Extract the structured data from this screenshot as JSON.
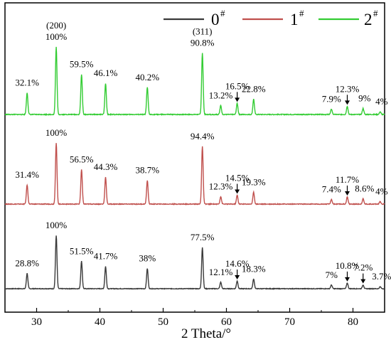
{
  "chart_data": {
    "type": "line",
    "xlabel": "2 Theta/°",
    "ylabel": "",
    "xlim": [
      25,
      85
    ],
    "x_ticks": [
      30,
      40,
      50,
      60,
      70,
      80
    ],
    "grid": false,
    "legend_position": "top-right",
    "series": [
      {
        "name": "0",
        "name_sup": "#",
        "color": "#3a3a3a",
        "peaks": [
          {
            "x": 28.5,
            "label": "28.8%",
            "rel": 0.288
          },
          {
            "x": 33.1,
            "label": "100%",
            "rel": 1.0
          },
          {
            "x": 37.1,
            "label": "51.5%",
            "rel": 0.515
          },
          {
            "x": 40.9,
            "label": "41.7%",
            "rel": 0.417
          },
          {
            "x": 47.5,
            "label": "38%",
            "rel": 0.38
          },
          {
            "x": 56.2,
            "label": "77.5%",
            "rel": 0.775
          },
          {
            "x": 59.1,
            "label": "12.1%",
            "rel": 0.121
          },
          {
            "x": 61.7,
            "label": "14.6%",
            "rel": 0.146,
            "arrow": true
          },
          {
            "x": 64.3,
            "label": "18.3%",
            "rel": 0.183
          },
          {
            "x": 76.6,
            "label": "7%",
            "rel": 0.07
          },
          {
            "x": 79.1,
            "label": "10.8%",
            "rel": 0.108,
            "arrow": true
          },
          {
            "x": 81.6,
            "label": "7.2%",
            "rel": 0.072,
            "arrow": true
          },
          {
            "x": 84.3,
            "label": "3.7%",
            "rel": 0.037
          }
        ]
      },
      {
        "name": "1",
        "name_sup": "#",
        "color": "#c0504d",
        "peaks": [
          {
            "x": 28.5,
            "label": "31.4%",
            "rel": 0.314
          },
          {
            "x": 33.1,
            "label": "100%",
            "rel": 1.0
          },
          {
            "x": 37.1,
            "label": "56.5%",
            "rel": 0.565
          },
          {
            "x": 40.9,
            "label": "44.3%",
            "rel": 0.443
          },
          {
            "x": 47.5,
            "label": "38.7%",
            "rel": 0.387
          },
          {
            "x": 56.2,
            "label": "94.4%",
            "rel": 0.944
          },
          {
            "x": 59.1,
            "label": "12.3%",
            "rel": 0.123
          },
          {
            "x": 61.7,
            "label": "14.5%",
            "rel": 0.145,
            "arrow": true
          },
          {
            "x": 64.3,
            "label": "19.3%",
            "rel": 0.193
          },
          {
            "x": 76.6,
            "label": "7.4%",
            "rel": 0.074
          },
          {
            "x": 79.1,
            "label": "11.7%",
            "rel": 0.117,
            "arrow": true
          },
          {
            "x": 81.6,
            "label": "8.6%",
            "rel": 0.086
          },
          {
            "x": 84.3,
            "label": "4%",
            "rel": 0.04
          }
        ]
      },
      {
        "name": "2",
        "name_sup": "#",
        "color": "#33cc33",
        "peaks": [
          {
            "x": 28.5,
            "label": "32.1%",
            "rel": 0.321
          },
          {
            "x": 33.1,
            "label": "100%",
            "rel": 1.0,
            "hkl": "(200)"
          },
          {
            "x": 37.1,
            "label": "59.5%",
            "rel": 0.595
          },
          {
            "x": 40.9,
            "label": "46.1%",
            "rel": 0.461
          },
          {
            "x": 47.5,
            "label": "40.2%",
            "rel": 0.402
          },
          {
            "x": 56.2,
            "label": "90.8%",
            "rel": 0.908,
            "hkl": "(311)"
          },
          {
            "x": 59.1,
            "label": "13.2%",
            "rel": 0.132
          },
          {
            "x": 61.7,
            "label": "16.5%",
            "rel": 0.165,
            "arrow": true
          },
          {
            "x": 64.3,
            "label": "22.8%",
            "rel": 0.228
          },
          {
            "x": 76.6,
            "label": "7.9%",
            "rel": 0.079
          },
          {
            "x": 79.1,
            "label": "12.3%",
            "rel": 0.123,
            "arrow": true
          },
          {
            "x": 81.6,
            "label": "9%",
            "rel": 0.09
          },
          {
            "x": 84.3,
            "label": "4%",
            "rel": 0.04
          }
        ]
      }
    ]
  }
}
